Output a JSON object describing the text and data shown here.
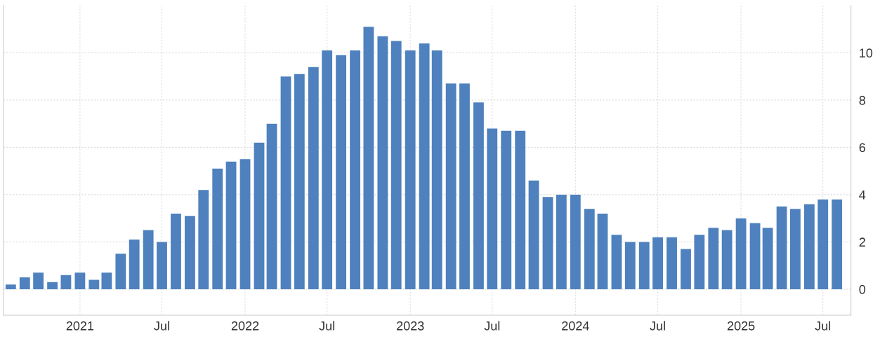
{
  "chart_data": {
    "type": "bar",
    "color": "#4e81bd",
    "x": [
      "2020-08",
      "2020-09",
      "2020-10",
      "2020-11",
      "2020-12",
      "2021-01",
      "2021-02",
      "2021-03",
      "2021-04",
      "2021-05",
      "2021-06",
      "2021-07",
      "2021-08",
      "2021-09",
      "2021-10",
      "2021-11",
      "2021-12",
      "2022-01",
      "2022-02",
      "2022-03",
      "2022-04",
      "2022-05",
      "2022-06",
      "2022-07",
      "2022-08",
      "2022-09",
      "2022-10",
      "2022-11",
      "2022-12",
      "2023-01",
      "2023-02",
      "2023-03",
      "2023-04",
      "2023-05",
      "2023-06",
      "2023-07",
      "2023-08",
      "2023-09",
      "2023-10",
      "2023-11",
      "2023-12",
      "2024-01",
      "2024-02",
      "2024-03",
      "2024-04",
      "2024-05",
      "2024-06",
      "2024-07",
      "2024-08",
      "2024-09",
      "2024-10",
      "2024-11",
      "2024-12",
      "2025-01",
      "2025-02",
      "2025-03",
      "2025-04",
      "2025-05",
      "2025-06",
      "2025-07",
      "2025-08"
    ],
    "values": [
      0.2,
      0.5,
      0.7,
      0.3,
      0.6,
      0.7,
      0.4,
      0.7,
      1.5,
      2.1,
      2.5,
      2.0,
      3.2,
      3.1,
      4.2,
      5.1,
      5.4,
      5.5,
      6.2,
      7.0,
      9.0,
      9.1,
      9.4,
      10.1,
      9.9,
      10.1,
      11.1,
      10.7,
      10.5,
      10.1,
      10.4,
      10.1,
      8.7,
      8.7,
      7.9,
      6.8,
      6.7,
      6.7,
      4.6,
      3.9,
      4.0,
      4.0,
      3.4,
      3.2,
      2.3,
      2.0,
      2.0,
      2.2,
      2.2,
      1.7,
      2.3,
      2.6,
      2.5,
      3.0,
      2.8,
      2.6,
      3.5,
      3.4,
      3.6,
      3.8,
      3.8
    ],
    "xlim": [
      "2020-07-16",
      "2025-09-01"
    ],
    "xticks": [
      {
        "value": "2021-01",
        "label": "2021"
      },
      {
        "value": "2021-07",
        "label": "Jul"
      },
      {
        "value": "2022-01",
        "label": "2022"
      },
      {
        "value": "2022-07",
        "label": "Jul"
      },
      {
        "value": "2023-01",
        "label": "2023"
      },
      {
        "value": "2023-07",
        "label": "Jul"
      },
      {
        "value": "2024-01",
        "label": "2024"
      },
      {
        "value": "2024-07",
        "label": "Jul"
      },
      {
        "value": "2025-01",
        "label": "2025"
      },
      {
        "value": "2025-07",
        "label": "Jul"
      }
    ],
    "ylim": [
      -1.1,
      12
    ],
    "yticks": [
      0,
      2,
      4,
      6,
      8,
      10
    ],
    "grid": true
  }
}
